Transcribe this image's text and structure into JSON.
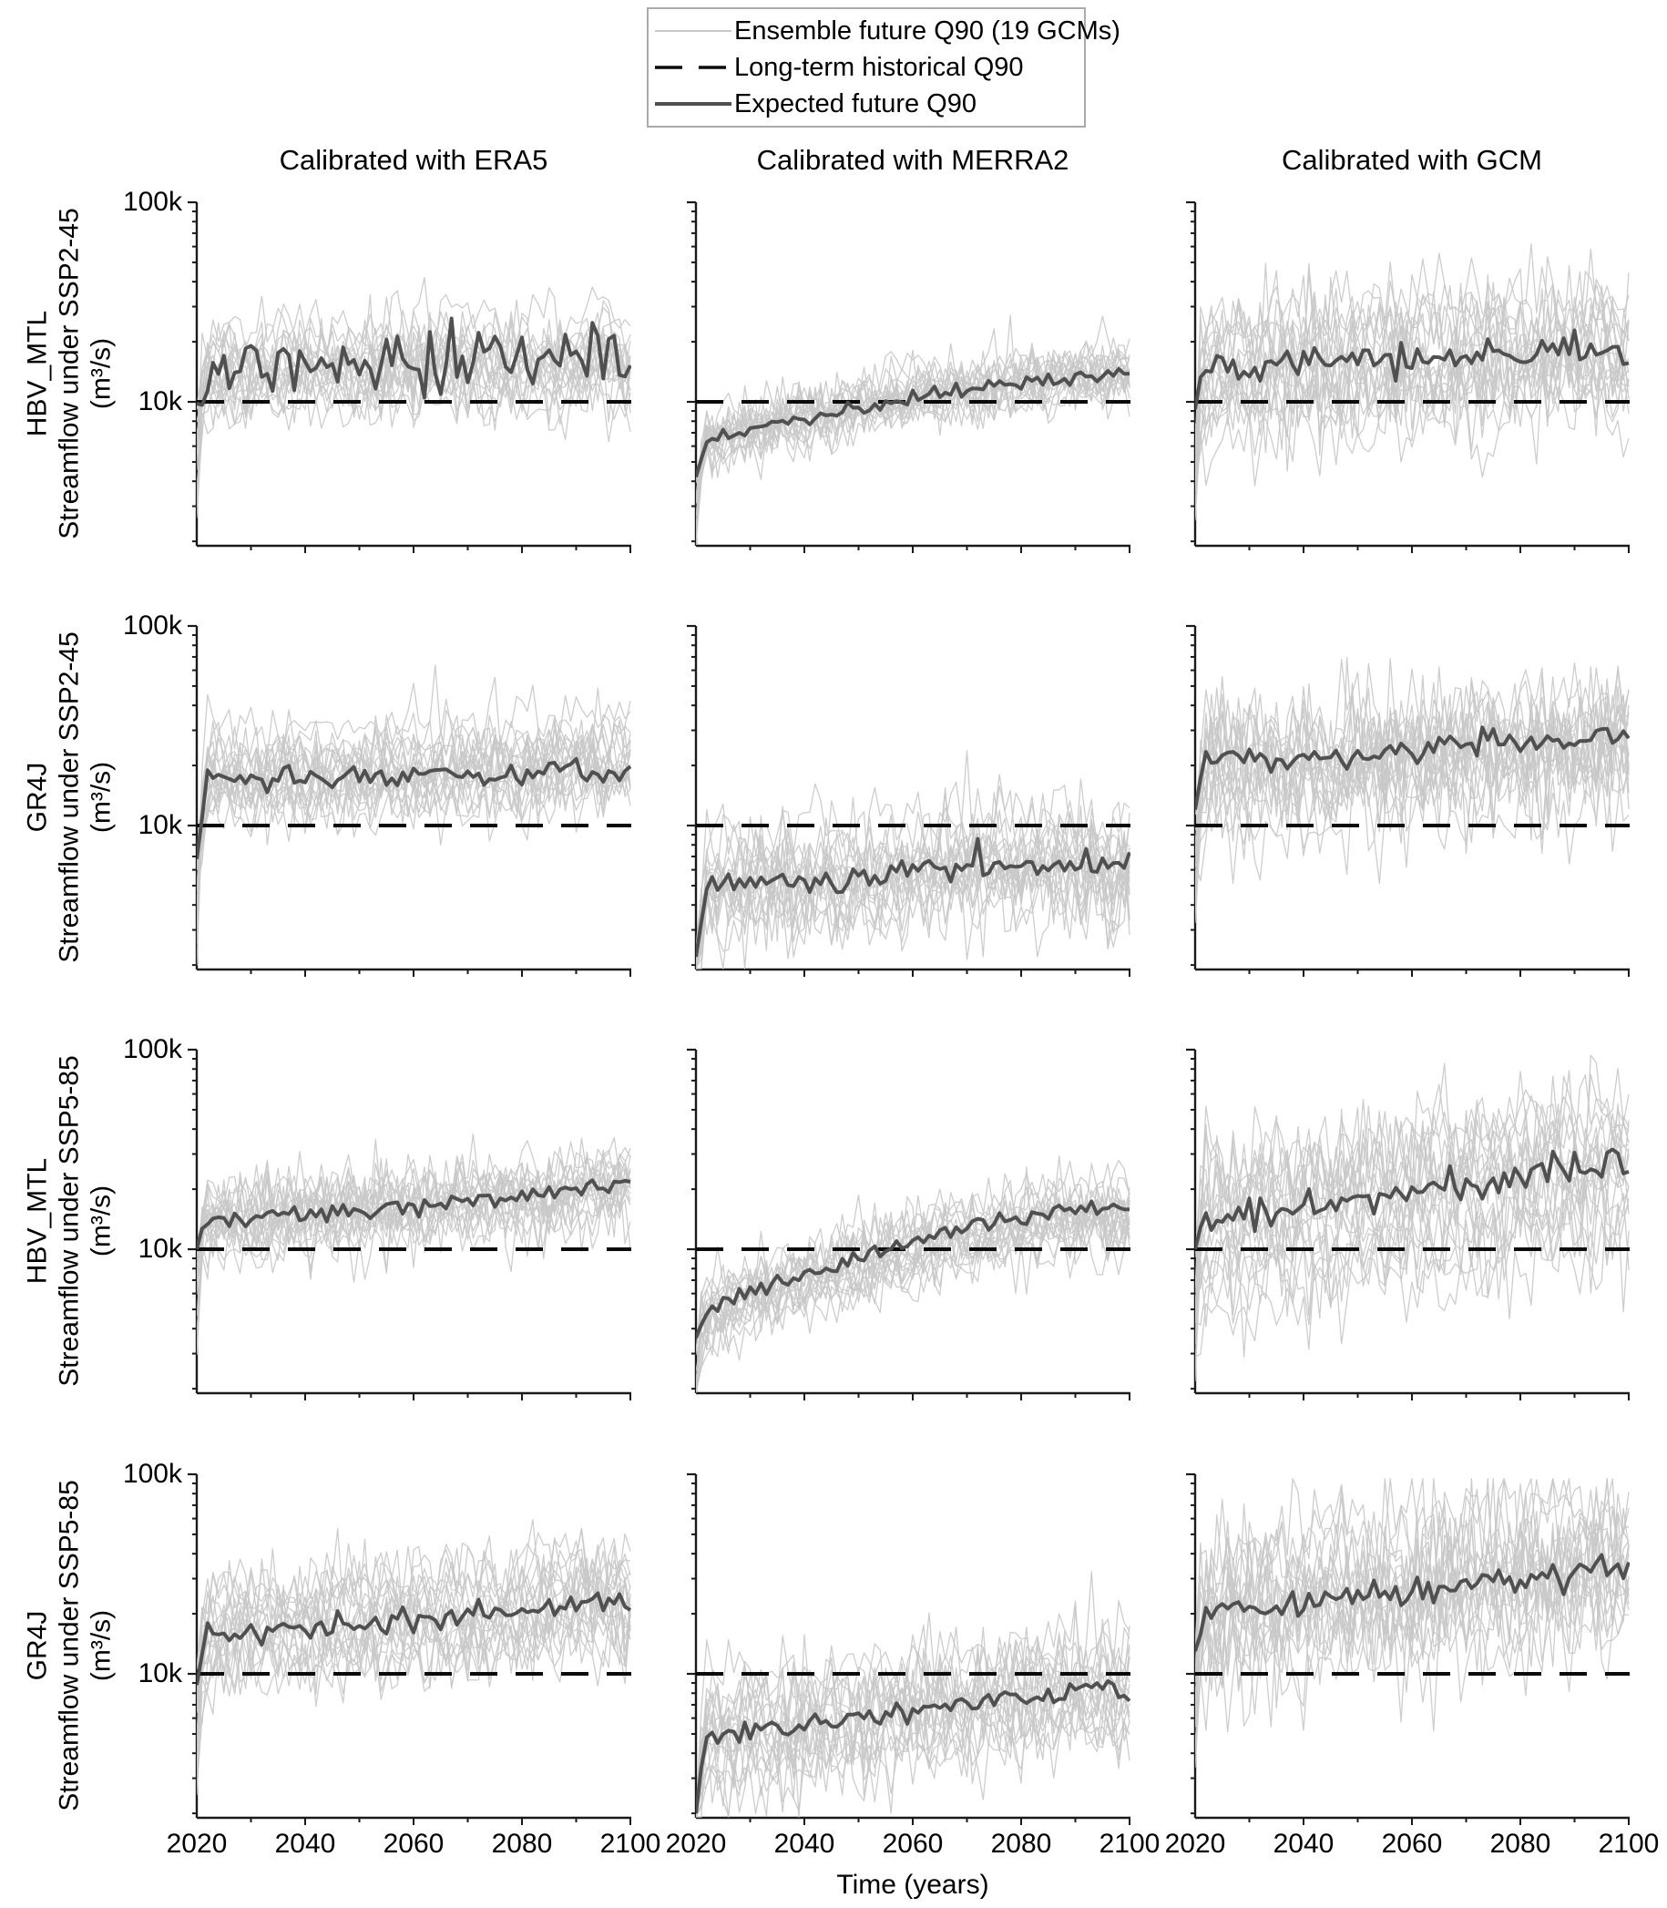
{
  "legend": {
    "items": [
      {
        "label": "Ensemble future Q90 (19 GCMs)",
        "style": "ensemble"
      },
      {
        "label": "Long-term historical Q90",
        "style": "dashed"
      },
      {
        "label": "Expected future Q90",
        "style": "expected"
      }
    ]
  },
  "columns": [
    {
      "title": "Calibrated with ERA5"
    },
    {
      "title": "Calibrated with MERRA2"
    },
    {
      "title": "Calibrated with GCM"
    }
  ],
  "rows": [
    {
      "line1": "HBV_MTL",
      "line2": "Streamflow under SSP2-45",
      "line3": "(m³/s)"
    },
    {
      "line1": "GR4J",
      "line2": "Streamflow under SSP2-45",
      "line3": "(m³/s)"
    },
    {
      "line1": "HBV_MTL",
      "line2": "Streamflow under SSP5-85",
      "line3": "(m³/s)"
    },
    {
      "line1": "GR4J",
      "line2": "Streamflow under SSP5-85",
      "line3": "(m³/s)"
    }
  ],
  "axes": {
    "y_tick_labels": [
      "100k",
      "10k"
    ],
    "y_tick_values": [
      100000,
      10000
    ],
    "x_tick_labels": [
      "2020",
      "2040",
      "2060",
      "2080",
      "2100"
    ],
    "x_tick_values": [
      2020,
      2040,
      2060,
      2080,
      2100
    ],
    "x_label": "Time (years)"
  },
  "colors": {
    "ensemble": "#c8c8c8",
    "expected": "#505050",
    "historical": "#0a0a0a",
    "axis": "#1a1a1a",
    "text": "#000000"
  },
  "chart_data": {
    "type": "line",
    "x_range": [
      2020,
      2100
    ],
    "x_step_years": 1,
    "y_scale": "log",
    "y_range": [
      1900,
      100000
    ],
    "historical_q90": 10000,
    "n_ensemble": 19,
    "grid": false,
    "legend_position": "top",
    "subplots": [
      {
        "row": 0,
        "col": 0,
        "seed": 11,
        "start": 9800,
        "noise": 0.08,
        "ens_sigma": 0.09,
        "ens_noise": 0.09,
        "expected_trend": [
          [
            2020,
            9800
          ],
          [
            2022,
            14500
          ],
          [
            2030,
            15200
          ],
          [
            2045,
            16000
          ],
          [
            2060,
            16200
          ],
          [
            2075,
            16000
          ],
          [
            2090,
            16500
          ],
          [
            2095,
            19500
          ],
          [
            2100,
            14500
          ]
        ]
      },
      {
        "row": 0,
        "col": 1,
        "seed": 12,
        "start": 4200,
        "noise": 0.02,
        "ens_sigma": 0.06,
        "ens_noise": 0.07,
        "expected_trend": [
          [
            2020,
            4200
          ],
          [
            2022,
            6300
          ],
          [
            2030,
            7200
          ],
          [
            2040,
            8200
          ],
          [
            2050,
            9300
          ],
          [
            2060,
            10500
          ],
          [
            2070,
            11500
          ],
          [
            2080,
            12500
          ],
          [
            2090,
            13300
          ],
          [
            2100,
            14200
          ]
        ]
      },
      {
        "row": 0,
        "col": 2,
        "seed": 13,
        "start": 9200,
        "noise": 0.045,
        "ens_sigma": 0.13,
        "ens_noise": 0.13,
        "expected_trend": [
          [
            2020,
            9200
          ],
          [
            2022,
            14500
          ],
          [
            2030,
            15000
          ],
          [
            2040,
            15500
          ],
          [
            2050,
            16500
          ],
          [
            2060,
            16500
          ],
          [
            2070,
            17000
          ],
          [
            2080,
            17500
          ],
          [
            2090,
            18500
          ],
          [
            2095,
            20500
          ],
          [
            2100,
            16500
          ]
        ]
      },
      {
        "row": 1,
        "col": 0,
        "seed": 21,
        "start": 6800,
        "noise": 0.03,
        "ens_sigma": 0.1,
        "ens_noise": 0.09,
        "expected_trend": [
          [
            2020,
            6800
          ],
          [
            2022,
            16500
          ],
          [
            2040,
            17000
          ],
          [
            2060,
            18000
          ],
          [
            2080,
            18500
          ],
          [
            2100,
            19500
          ]
        ]
      },
      {
        "row": 1,
        "col": 1,
        "seed": 22,
        "start": 2200,
        "noise": 0.035,
        "ens_sigma": 0.11,
        "ens_noise": 0.11,
        "expected_trend": [
          [
            2020,
            2200
          ],
          [
            2022,
            5000
          ],
          [
            2040,
            5300
          ],
          [
            2060,
            5800
          ],
          [
            2070,
            6300
          ],
          [
            2080,
            6200
          ],
          [
            2090,
            6500
          ],
          [
            2100,
            6000
          ]
        ]
      },
      {
        "row": 1,
        "col": 2,
        "seed": 23,
        "start": 12000,
        "noise": 0.03,
        "ens_sigma": 0.14,
        "ens_noise": 0.14,
        "expected_trend": [
          [
            2020,
            12000
          ],
          [
            2022,
            22500
          ],
          [
            2030,
            21500
          ],
          [
            2035,
            20500
          ],
          [
            2045,
            22000
          ],
          [
            2060,
            23500
          ],
          [
            2070,
            25500
          ],
          [
            2080,
            26000
          ],
          [
            2090,
            27500
          ],
          [
            2100,
            29000
          ]
        ]
      },
      {
        "row": 2,
        "col": 0,
        "seed": 31,
        "start": 10000,
        "noise": 0.025,
        "ens_sigma": 0.09,
        "ens_noise": 0.09,
        "expected_trend": [
          [
            2020,
            10000
          ],
          [
            2022,
            13800
          ],
          [
            2030,
            14500
          ],
          [
            2040,
            15200
          ],
          [
            2050,
            15800
          ],
          [
            2060,
            16500
          ],
          [
            2070,
            17500
          ],
          [
            2080,
            18500
          ],
          [
            2090,
            19500
          ],
          [
            2100,
            21000
          ]
        ]
      },
      {
        "row": 2,
        "col": 1,
        "seed": 32,
        "start": 3600,
        "noise": 0.02,
        "ens_sigma": 0.07,
        "ens_noise": 0.08,
        "expected_trend": [
          [
            2020,
            3600
          ],
          [
            2022,
            5000
          ],
          [
            2030,
            6200
          ],
          [
            2040,
            7400
          ],
          [
            2050,
            9000
          ],
          [
            2060,
            10800
          ],
          [
            2070,
            12500
          ],
          [
            2080,
            14200
          ],
          [
            2090,
            15500
          ],
          [
            2100,
            16200
          ]
        ]
      },
      {
        "row": 2,
        "col": 2,
        "seed": 33,
        "start": 10000,
        "noise": 0.045,
        "ens_sigma": 0.14,
        "ens_noise": 0.14,
        "expected_trend": [
          [
            2020,
            10000
          ],
          [
            2022,
            14000
          ],
          [
            2030,
            15000
          ],
          [
            2040,
            16000
          ],
          [
            2050,
            17500
          ],
          [
            2060,
            19500
          ],
          [
            2070,
            21000
          ],
          [
            2080,
            23500
          ],
          [
            2090,
            25500
          ],
          [
            2095,
            27000
          ],
          [
            2100,
            26000
          ]
        ]
      },
      {
        "row": 3,
        "col": 0,
        "seed": 41,
        "start": 8800,
        "noise": 0.03,
        "ens_sigma": 0.1,
        "ens_noise": 0.1,
        "expected_trend": [
          [
            2020,
            8800
          ],
          [
            2022,
            15500
          ],
          [
            2030,
            16500
          ],
          [
            2040,
            16800
          ],
          [
            2050,
            17800
          ],
          [
            2060,
            18800
          ],
          [
            2070,
            19300
          ],
          [
            2080,
            20000
          ],
          [
            2090,
            22500
          ],
          [
            2100,
            22800
          ]
        ]
      },
      {
        "row": 3,
        "col": 1,
        "seed": 42,
        "start": 2000,
        "noise": 0.03,
        "ens_sigma": 0.11,
        "ens_noise": 0.11,
        "expected_trend": [
          [
            2020,
            2000
          ],
          [
            2022,
            5000
          ],
          [
            2030,
            5200
          ],
          [
            2040,
            5400
          ],
          [
            2050,
            6000
          ],
          [
            2060,
            6600
          ],
          [
            2070,
            7100
          ],
          [
            2080,
            7600
          ],
          [
            2090,
            8300
          ],
          [
            2095,
            8600
          ],
          [
            2100,
            7900
          ]
        ]
      },
      {
        "row": 3,
        "col": 2,
        "seed": 43,
        "start": 13000,
        "noise": 0.035,
        "ens_sigma": 0.15,
        "ens_noise": 0.15,
        "expected_trend": [
          [
            2020,
            13000
          ],
          [
            2022,
            20000
          ],
          [
            2030,
            22500
          ],
          [
            2035,
            21500
          ],
          [
            2045,
            24500
          ],
          [
            2055,
            25000
          ],
          [
            2065,
            27500
          ],
          [
            2075,
            29500
          ],
          [
            2085,
            32500
          ],
          [
            2095,
            35500
          ],
          [
            2100,
            33500
          ]
        ]
      }
    ]
  }
}
